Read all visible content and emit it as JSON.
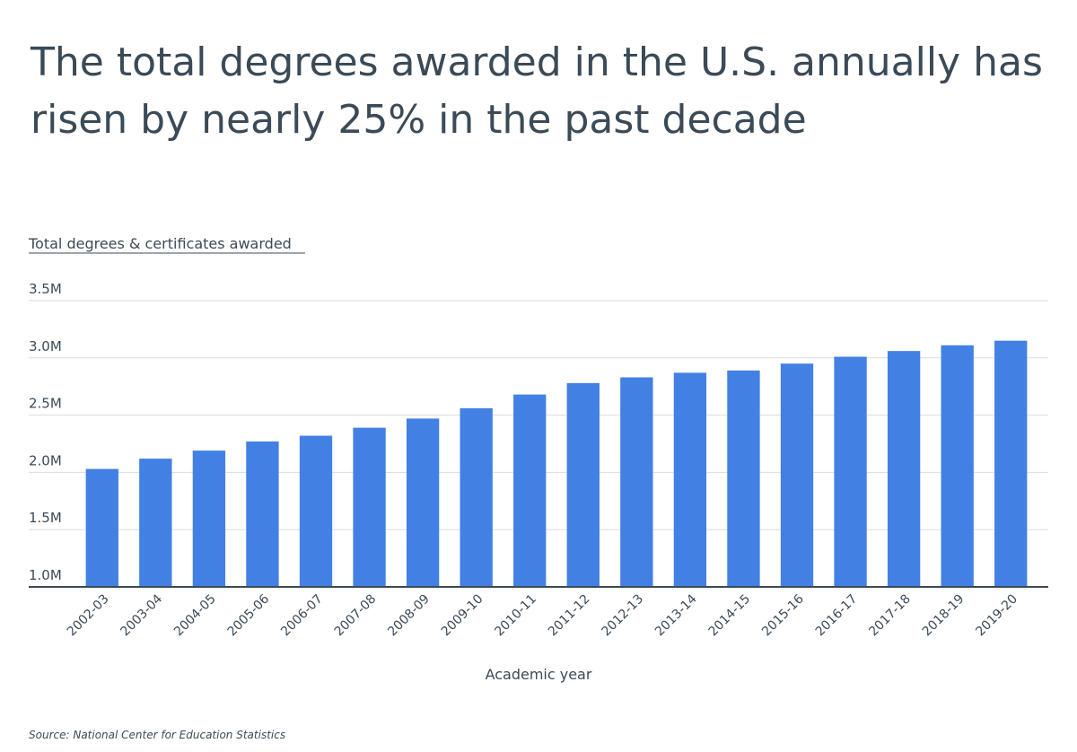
{
  "title": "The total degrees awarded in the U.S. annually has risen by nearly 25% in the past decade",
  "source": "Source:  National Center for Education Statistics",
  "colors": {
    "bar": "#4281e3",
    "text": "#3b4a57",
    "grid": "#d9dde1",
    "axis": "#3b4a57"
  },
  "chart_data": {
    "type": "bar",
    "title": "The total degrees awarded in the U.S. annually has risen by nearly 25% in the past decade",
    "subtitle": "Total degrees & certificates awarded",
    "xlabel": "Academic year",
    "ylabel": "",
    "categories": [
      "2002-03",
      "2003-04",
      "2004-05",
      "2005-06",
      "2006-07",
      "2007-08",
      "2008-09",
      "2009-10",
      "2010-11",
      "2011-12",
      "2012-13",
      "2013-14",
      "2014-15",
      "2015-16",
      "2016-17",
      "2017-18",
      "2018-19",
      "2019-20"
    ],
    "values": [
      2030000,
      2120000,
      2190000,
      2270000,
      2320000,
      2390000,
      2470000,
      2560000,
      2680000,
      2780000,
      2830000,
      2870000,
      2890000,
      2950000,
      3010000,
      3060000,
      3110000,
      3150000
    ],
    "ylim": [
      1000000,
      3500000
    ],
    "yticks": [
      {
        "value": 1000000,
        "label": "1.0M"
      },
      {
        "value": 1500000,
        "label": "1.5M"
      },
      {
        "value": 2000000,
        "label": "2.0M"
      },
      {
        "value": 2500000,
        "label": "2.5M"
      },
      {
        "value": 3000000,
        "label": "3.0M"
      },
      {
        "value": 3500000,
        "label": "3.5M"
      }
    ],
    "grid": true,
    "legend": "none"
  }
}
